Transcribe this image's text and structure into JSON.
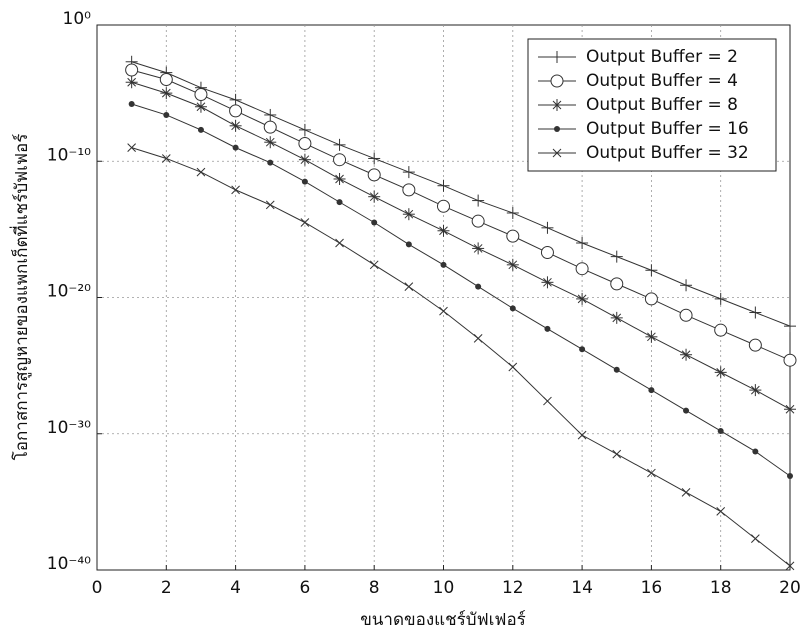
{
  "chart_data": {
    "type": "line",
    "x_label": "ขนาดของแชร์บัฟเฟอร์",
    "y_label": "โอกาสการสูญหายของแพกเก็ตที่แชร์บัฟเฟอร์",
    "x": [
      1,
      2,
      3,
      4,
      5,
      6,
      7,
      8,
      9,
      10,
      11,
      12,
      13,
      14,
      15,
      16,
      17,
      18,
      19,
      20
    ],
    "xlim": [
      0,
      20
    ],
    "xticks": [
      0,
      2,
      4,
      6,
      8,
      10,
      12,
      14,
      16,
      18,
      20
    ],
    "ylim": [
      1e-40,
      1
    ],
    "yscale": "log",
    "yticks": [
      {
        "value": 1,
        "label": "10⁰"
      },
      {
        "value": 1e-10,
        "label": "10⁻¹⁰"
      },
      {
        "value": 1e-20,
        "label": "10⁻²⁰"
      },
      {
        "value": 1e-30,
        "label": "10⁻³⁰"
      },
      {
        "value": 1e-40,
        "label": "10⁻⁴⁰"
      }
    ],
    "grid": true,
    "legend": "upper right",
    "series": [
      {
        "name": "Output Buffer = 2",
        "color": "#333333",
        "marker": "plus",
        "values": [
          0.002,
          0.00032,
          2.5e-05,
          3.2e-06,
          2.5e-07,
          2e-08,
          1.6e-09,
          1.6e-10,
          1.6e-11,
          1.6e-12,
          1.3e-13,
          1.6e-14,
          1.3e-15,
          1e-16,
          1e-17,
          1e-18,
          7.9e-20,
          7.9e-21,
          7.9e-22,
          7.9e-23
        ]
      },
      {
        "name": "Output Buffer = 4",
        "color": "#333333",
        "marker": "circle",
        "values": [
          0.0005,
          0.0001,
          7.9e-06,
          5e-07,
          3.2e-08,
          2e-09,
          1.3e-10,
          1e-11,
          7.9e-13,
          5e-14,
          4e-15,
          3.2e-16,
          2e-17,
          1.3e-18,
          1e-19,
          7.9e-21,
          5e-22,
          4e-23,
          3.2e-24,
          2.5e-25
        ]
      },
      {
        "name": "Output Buffer = 8",
        "color": "#333333",
        "marker": "star",
        "values": [
          6.3e-05,
          1e-05,
          1e-06,
          4e-08,
          2.5e-09,
          1.3e-10,
          5e-12,
          2.5e-13,
          1.3e-14,
          7.9e-16,
          4e-17,
          2.5e-18,
          1.3e-19,
          7.9e-21,
          3.2e-22,
          1.3e-23,
          6.3e-25,
          3.2e-26,
          1.6e-27,
          6.3e-29
        ]
      },
      {
        "name": "Output Buffer = 16",
        "color": "#333333",
        "marker": "dot",
        "values": [
          1.6e-06,
          2.5e-07,
          2e-08,
          1e-09,
          7.9e-11,
          3.2e-12,
          1e-13,
          3.2e-15,
          7.9e-17,
          2.5e-18,
          6.3e-20,
          1.6e-21,
          5e-23,
          1.6e-24,
          5e-26,
          1.6e-27,
          5e-29,
          1.6e-30,
          5e-32,
          7.9e-34
        ]
      },
      {
        "name": "Output Buffer = 32",
        "color": "#333333",
        "marker": "cross",
        "values": [
          1e-09,
          1.6e-10,
          1.6e-11,
          7.9e-13,
          6.3e-14,
          3.2e-15,
          1e-16,
          2.5e-18,
          6.3e-20,
          1e-21,
          1e-23,
          7.9e-26,
          2.5e-28,
          7.9e-31,
          3.2e-32,
          1.3e-33,
          5e-35,
          2e-36,
          2e-38,
          2e-40
        ]
      }
    ]
  }
}
